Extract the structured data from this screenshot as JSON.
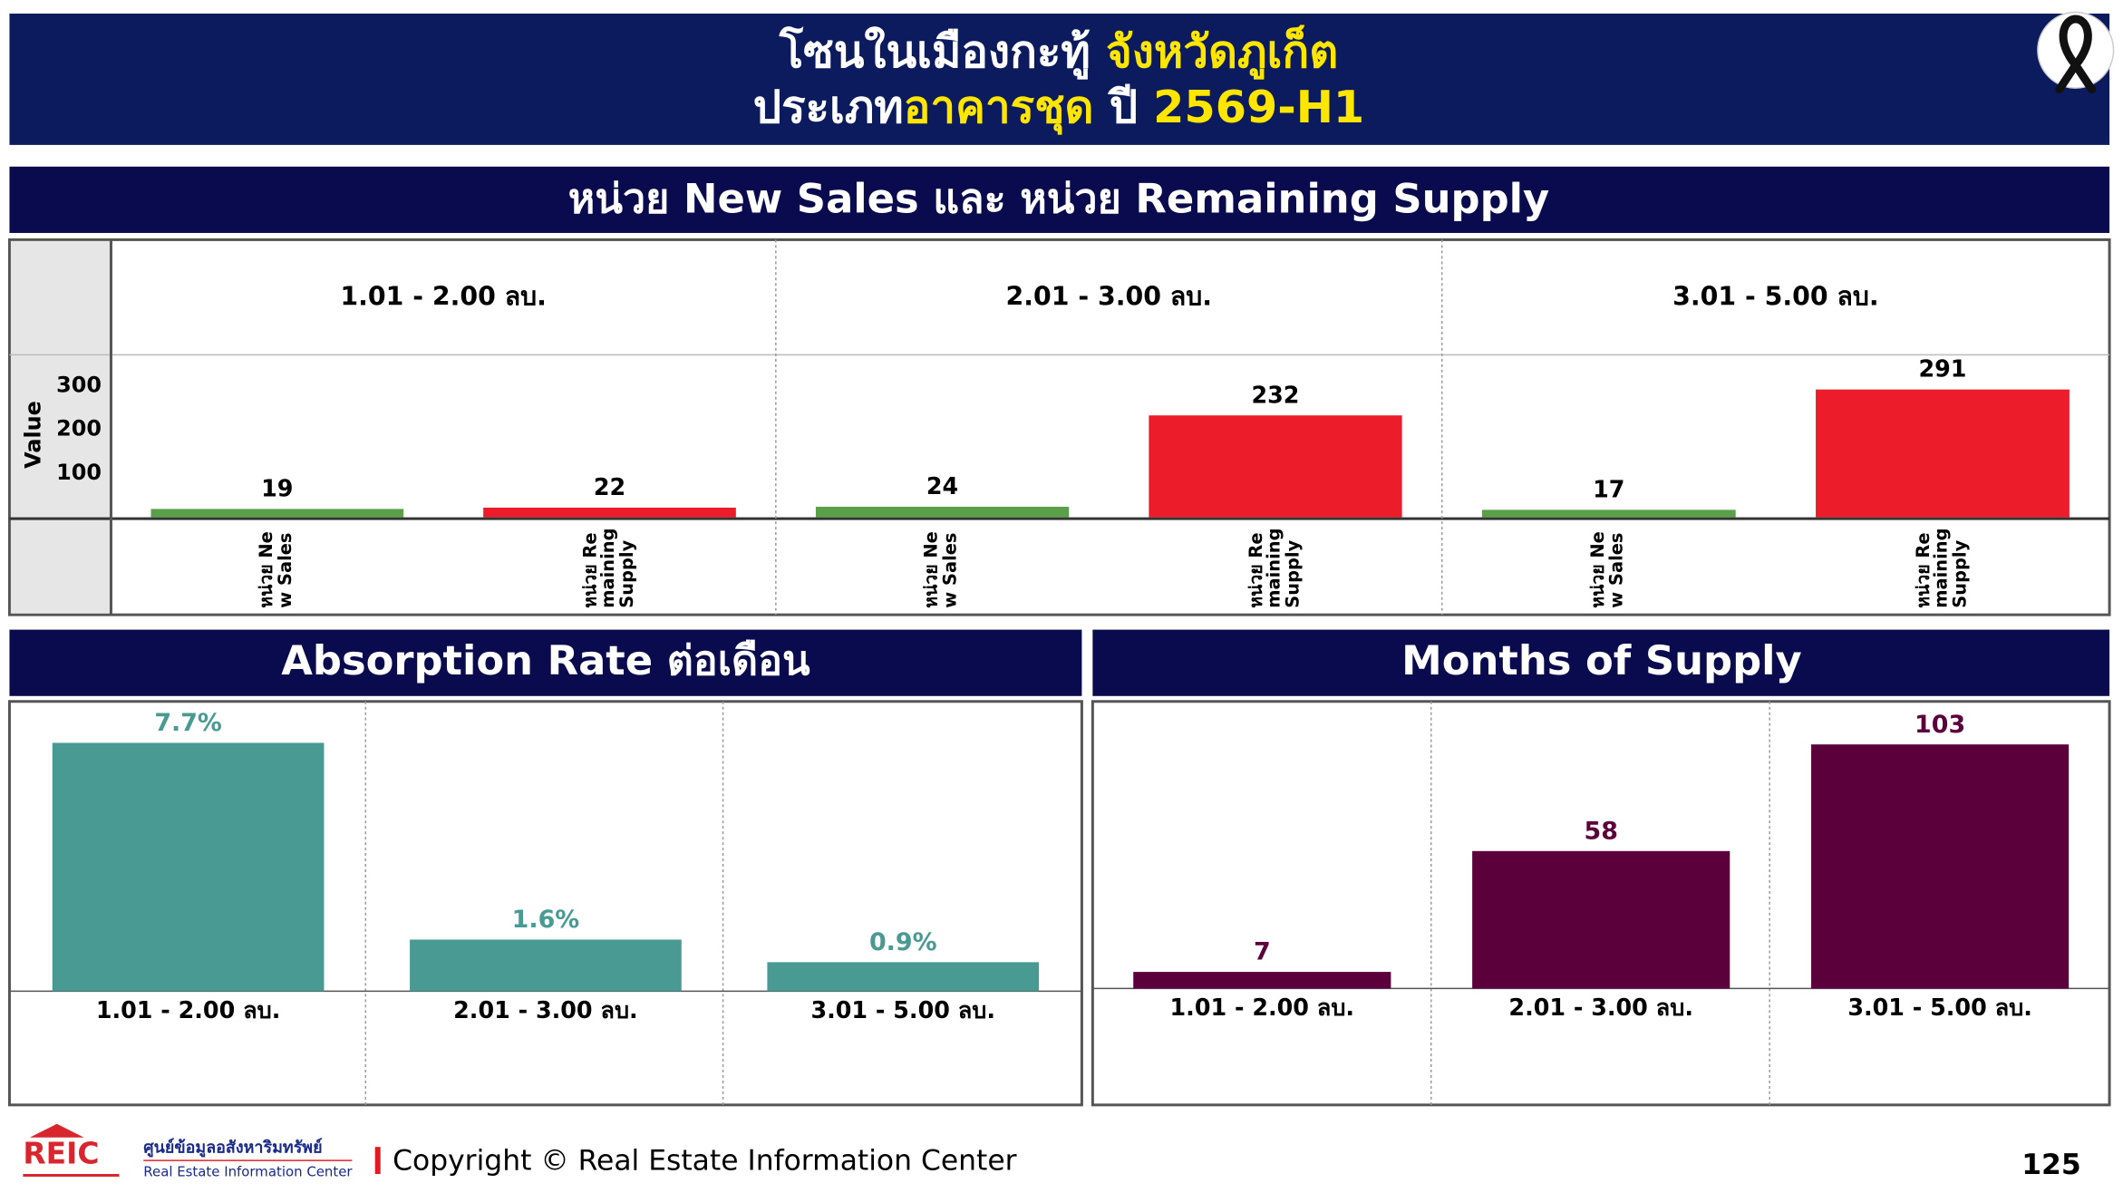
{
  "header": {
    "line1": [
      "โซนในเมืองกะทู้",
      "จังหวัดภูเก็ต"
    ],
    "line2": [
      "ประเภท",
      "อาคารชุด",
      "ปี",
      "2569-H1"
    ]
  },
  "chart_data": [
    {
      "type": "grouped_bar",
      "title": "หน่วย New Sales และ หน่วย Remaining Supply",
      "ylabel": "Value",
      "categories": [
        "1.01 - 2.00 ลบ.",
        "2.01 - 3.00 ลบ.",
        "3.01 - 5.00 ลบ."
      ],
      "series": [
        {
          "name": "หน่วย New Sales",
          "color": "#5aa04a",
          "values": [
            19,
            24,
            17
          ]
        },
        {
          "name": "หน่วย Remaining Supply",
          "color": "#ec1c2b",
          "values": [
            22,
            232,
            291
          ]
        }
      ],
      "ylim": [
        0,
        370
      ],
      "yticks": [
        100,
        200,
        300
      ]
    },
    {
      "type": "bar",
      "title": "Absorption Rate ต่อเดือน",
      "categories": [
        "1.01 - 2.00 ลบ.",
        "2.01 - 3.00 ลบ.",
        "3.01 - 5.00 ลบ."
      ],
      "values": [
        7.7,
        1.6,
        0.9
      ],
      "value_labels": [
        "7.7%",
        "1.6%",
        "0.9%"
      ],
      "color": "#4a9a94",
      "ylim": [
        0,
        8.9
      ]
    },
    {
      "type": "bar",
      "title": "Months of Supply",
      "categories": [
        "1.01 - 2.00 ลบ.",
        "2.01 - 3.00 ลบ.",
        "3.01 - 5.00 ลบ."
      ],
      "values": [
        7,
        58,
        103
      ],
      "color": "#5c003c",
      "ylim": [
        0,
        120
      ]
    }
  ],
  "footer": {
    "logo": "REIC",
    "org_th": "ศูนย์ข้อมูลอสังหาริมทรัพย์",
    "org_en": "Real Estate Information Center",
    "copyright": "Copyright © Real Estate Information Center",
    "page": "125"
  }
}
